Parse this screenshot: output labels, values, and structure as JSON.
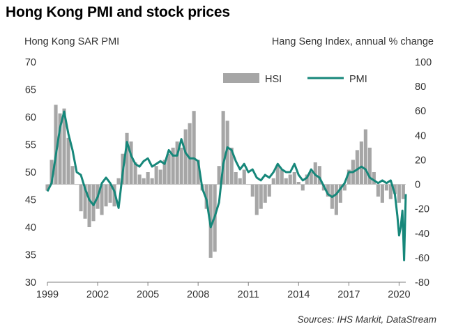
{
  "title": "Hong Kong PMI and stock prices",
  "source": "Sources: IHS Markit, DataStream",
  "colors": {
    "hsi": "#a6a6a6",
    "pmi": "#16877a",
    "axis": "#7f7f7f"
  },
  "chart_data": {
    "type": "bar+line",
    "left_axis": {
      "label": "Hong Kong SAR PMI",
      "range": [
        30,
        70
      ],
      "ticks": [
        30,
        35,
        40,
        45,
        50,
        55,
        60,
        65,
        70
      ],
      "series": "PMI"
    },
    "right_axis": {
      "label": "Hang Seng Index, annual % change",
      "range": [
        -80,
        100
      ],
      "ticks": [
        -80,
        -60,
        -40,
        -20,
        0,
        20,
        40,
        60,
        80,
        100
      ],
      "series": "HSI"
    },
    "x_ticks": [
      "1999",
      "2002",
      "2005",
      "2008",
      "2011",
      "2014",
      "2017",
      "2020"
    ],
    "x_range": [
      1999.0,
      2020.4
    ],
    "legend": [
      "HSI",
      "PMI"
    ],
    "series": [
      {
        "name": "HSI",
        "type": "bar",
        "axis": "right",
        "x": [
          1999.0,
          1999.25,
          1999.5,
          1999.75,
          2000.0,
          2000.25,
          2000.5,
          2000.75,
          2001.0,
          2001.25,
          2001.5,
          2001.75,
          2002.0,
          2002.25,
          2002.5,
          2002.75,
          2003.0,
          2003.25,
          2003.5,
          2003.75,
          2004.0,
          2004.25,
          2004.5,
          2004.75,
          2005.0,
          2005.25,
          2005.5,
          2005.75,
          2006.0,
          2006.25,
          2006.5,
          2006.75,
          2007.0,
          2007.25,
          2007.5,
          2007.75,
          2008.0,
          2008.25,
          2008.5,
          2008.75,
          2009.0,
          2009.25,
          2009.5,
          2009.75,
          2010.0,
          2010.25,
          2010.5,
          2010.75,
          2011.0,
          2011.25,
          2011.5,
          2011.75,
          2012.0,
          2012.25,
          2012.5,
          2012.75,
          2013.0,
          2013.25,
          2013.5,
          2013.75,
          2014.0,
          2014.25,
          2014.5,
          2014.75,
          2015.0,
          2015.25,
          2015.5,
          2015.75,
          2016.0,
          2016.25,
          2016.5,
          2016.75,
          2017.0,
          2017.25,
          2017.5,
          2017.75,
          2018.0,
          2018.25,
          2018.5,
          2018.75,
          2019.0,
          2019.25,
          2019.5,
          2019.75,
          2020.0,
          2020.25
        ],
        "values": [
          -5,
          20,
          65,
          58,
          62,
          38,
          15,
          0,
          -22,
          -28,
          -35,
          -30,
          -20,
          -25,
          -18,
          -15,
          -18,
          5,
          25,
          42,
          35,
          18,
          8,
          5,
          10,
          5,
          15,
          12,
          20,
          25,
          30,
          35,
          30,
          45,
          50,
          60,
          20,
          -5,
          -20,
          -60,
          -55,
          15,
          60,
          52,
          30,
          10,
          5,
          12,
          0,
          -10,
          -25,
          -20,
          -15,
          -10,
          5,
          15,
          12,
          5,
          8,
          10,
          2,
          -5,
          8,
          10,
          18,
          15,
          -5,
          -10,
          -20,
          -25,
          -15,
          -5,
          12,
          20,
          28,
          35,
          45,
          30,
          10,
          -10,
          -15,
          -5,
          -12,
          -8,
          -15,
          -12
        ]
      },
      {
        "name": "PMI",
        "type": "line",
        "axis": "left",
        "x": [
          1999.0,
          1999.25,
          1999.5,
          1999.75,
          2000.0,
          2000.25,
          2000.5,
          2000.75,
          2001.0,
          2001.25,
          2001.5,
          2001.75,
          2002.0,
          2002.25,
          2002.5,
          2002.75,
          2003.0,
          2003.25,
          2003.5,
          2003.75,
          2004.0,
          2004.25,
          2004.5,
          2004.75,
          2005.0,
          2005.25,
          2005.5,
          2005.75,
          2006.0,
          2006.25,
          2006.5,
          2006.75,
          2007.0,
          2007.25,
          2007.5,
          2007.75,
          2008.0,
          2008.25,
          2008.5,
          2008.75,
          2009.0,
          2009.25,
          2009.5,
          2009.75,
          2010.0,
          2010.25,
          2010.5,
          2010.75,
          2011.0,
          2011.25,
          2011.5,
          2011.75,
          2012.0,
          2012.25,
          2012.5,
          2012.75,
          2013.0,
          2013.25,
          2013.5,
          2013.75,
          2014.0,
          2014.25,
          2014.5,
          2014.75,
          2015.0,
          2015.25,
          2015.5,
          2015.75,
          2016.0,
          2016.25,
          2016.5,
          2016.75,
          2017.0,
          2017.25,
          2017.5,
          2017.75,
          2018.0,
          2018.25,
          2018.5,
          2018.75,
          2019.0,
          2019.25,
          2019.5,
          2019.75,
          2019.9,
          2020.0,
          2020.1,
          2020.2,
          2020.3,
          2020.4
        ],
        "values": [
          46.5,
          48,
          53,
          58,
          61,
          57,
          54,
          50,
          49.5,
          47,
          45,
          44,
          45.5,
          48,
          49,
          48,
          46.5,
          43.5,
          50,
          55.5,
          53,
          51.5,
          51,
          52,
          52.5,
          51,
          51.5,
          52,
          51.5,
          54,
          53,
          53,
          56,
          53.5,
          52.5,
          52.5,
          52,
          47,
          45,
          40,
          42,
          44.5,
          51.5,
          54.5,
          54,
          52,
          50.5,
          51.5,
          50,
          50.5,
          49,
          48.5,
          49.5,
          49,
          50,
          51.5,
          50.5,
          50,
          50,
          51.5,
          49.5,
          48.5,
          49,
          50.5,
          49.5,
          49,
          47.5,
          46,
          45.5,
          46,
          47,
          48,
          50,
          50,
          50.5,
          51,
          50.5,
          49,
          48.5,
          48,
          48.5,
          48,
          48.5,
          46,
          42,
          38.5,
          40,
          43,
          34,
          46
        ]
      }
    ]
  }
}
